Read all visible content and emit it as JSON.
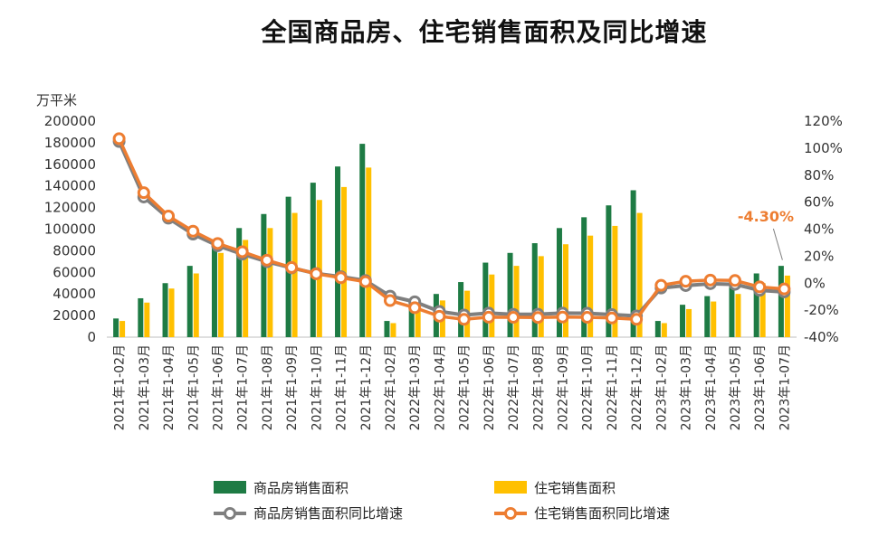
{
  "chart_data": {
    "type": "bar",
    "title": "全国商品房、住宅销售面积及同比增速",
    "y_left_label": "万平米",
    "y_left_lim": [
      0,
      200000
    ],
    "y_left_ticks": [
      "0",
      "20000",
      "40000",
      "60000",
      "80000",
      "100000",
      "120000",
      "140000",
      "160000",
      "180000",
      "200000"
    ],
    "y_right_lim": [
      -40,
      120
    ],
    "y_right_ticks": [
      "-40%",
      "-20%",
      "0%",
      "20%",
      "40%",
      "60%",
      "80%",
      "100%",
      "120%"
    ],
    "categories": [
      "2021年1-02月",
      "2021年1-03月",
      "2021年1-04月",
      "2021年1-05月",
      "2021年1-06月",
      "2021年1-07月",
      "2021年1-08月",
      "2021年1-09月",
      "2021年1-10月",
      "2021年1-11月",
      "2021年1-12月",
      "2022年1-02月",
      "2022年1-03月",
      "2022年1-04月",
      "2022年1-05月",
      "2022年1-06月",
      "2022年1-07月",
      "2022年1-08月",
      "2022年1-09月",
      "2022年1-10月",
      "2022年1-11月",
      "2022年1-12月",
      "2023年1-02月",
      "2023年1-03月",
      "2023年1-04月",
      "2023年1-05月",
      "2023年1-06月",
      "2023年1-07月"
    ],
    "series": [
      {
        "name": "商品房销售面积",
        "type": "bar",
        "axis": "left",
        "color": "#1e7b44",
        "values": [
          17300,
          36000,
          50000,
          66000,
          88600,
          101000,
          114000,
          130000,
          143000,
          158000,
          179000,
          15000,
          31000,
          40000,
          51000,
          69000,
          78000,
          87000,
          101000,
          111000,
          122000,
          136000,
          15000,
          30000,
          38000,
          47000,
          59000,
          66000
        ]
      },
      {
        "name": "住宅销售面积",
        "type": "bar",
        "axis": "left",
        "color": "#ffc000",
        "values": [
          15000,
          32000,
          45000,
          59000,
          78000,
          90000,
          101000,
          115000,
          127000,
          139000,
          157000,
          13000,
          26000,
          34000,
          43000,
          58000,
          66000,
          75000,
          86000,
          94000,
          103000,
          115000,
          13000,
          26000,
          33000,
          40000,
          50000,
          57000
        ]
      },
      {
        "name": "商品房销售面积同比增速",
        "type": "line",
        "axis": "right",
        "color": "#7f7f7f",
        "values": [
          104.9,
          63.8,
          48.1,
          36.3,
          27.7,
          21.5,
          15.9,
          11.3,
          7.1,
          4.8,
          1.9,
          -9.6,
          -13.8,
          -20.9,
          -23.6,
          -22.2,
          -23.1,
          -23.0,
          -22.2,
          -22.3,
          -23.3,
          -24.3,
          -3.6,
          -1.8,
          -0.4,
          -0.9,
          -5.3,
          -6.5
        ]
      },
      {
        "name": "住宅销售面积同比增速",
        "type": "line",
        "axis": "right",
        "color": "#ed7d31",
        "values": [
          107.0,
          67.0,
          49.7,
          38.5,
          29.4,
          23.3,
          17.0,
          11.6,
          6.9,
          4.0,
          1.1,
          -12.9,
          -18.2,
          -24.5,
          -26.8,
          -25.2,
          -25.3,
          -25.4,
          -25.1,
          -25.3,
          -25.8,
          -26.8,
          -1.6,
          1.4,
          2.3,
          2.0,
          -2.8,
          -4.3
        ]
      }
    ],
    "annotation": {
      "text": "-4.30%",
      "series": "住宅销售面积同比增速",
      "index": 27
    },
    "legend_position": "bottom",
    "grid": false
  }
}
